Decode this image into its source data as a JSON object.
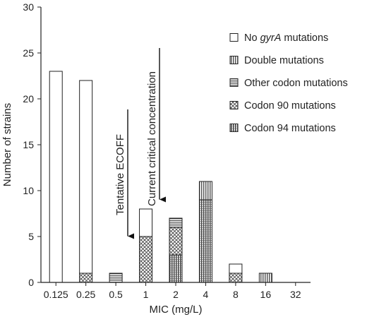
{
  "chart_data": {
    "type": "bar",
    "stacked": true,
    "categories": [
      "0.125",
      "0.25",
      "0.5",
      "1",
      "2",
      "4",
      "8",
      "16",
      "32"
    ],
    "xlabel": "MIC (mg/L)",
    "ylabel": "Number of strains",
    "ylim": [
      0,
      30
    ],
    "yticks": [
      "0",
      "5",
      "10",
      "15",
      "20",
      "25",
      "30"
    ],
    "grid": false,
    "legend_position": "top-right",
    "series": [
      {
        "name": "Codon 94 mutations",
        "pattern": "dense-vertical",
        "values": [
          0,
          0,
          0,
          0,
          3,
          9,
          0,
          0,
          0
        ]
      },
      {
        "name": "Codon 90 mutations",
        "pattern": "crosshatch",
        "values": [
          0,
          1,
          0,
          5,
          3,
          0,
          1,
          0,
          0
        ]
      },
      {
        "name": "Other codon mutations",
        "pattern": "horizontal",
        "values": [
          0,
          0,
          1,
          0,
          1,
          0,
          0,
          0,
          0
        ]
      },
      {
        "name": "Double mutations",
        "pattern": "vertical",
        "values": [
          0,
          0,
          0,
          0,
          0,
          2,
          0,
          1,
          0
        ]
      },
      {
        "name": "No gyrA mutations",
        "pattern": "blank",
        "values": [
          23,
          21,
          0,
          3,
          0,
          0,
          1,
          0,
          0
        ]
      }
    ],
    "legend": [
      {
        "pre": "No ",
        "italic": "gyrA",
        "post": " mutations",
        "pattern": "blank"
      },
      {
        "pre": "Double mutations",
        "italic": "",
        "post": "",
        "pattern": "vertical"
      },
      {
        "pre": "Other codon mutations",
        "italic": "",
        "post": "",
        "pattern": "horizontal"
      },
      {
        "pre": "Codon 90 mutations",
        "italic": "",
        "post": "",
        "pattern": "crosshatch"
      },
      {
        "pre": "Codon 94 mutations",
        "italic": "",
        "post": "",
        "pattern": "dense-vertical"
      }
    ],
    "annotations": [
      {
        "text": "Tentative ECOFF",
        "between": [
          "0.5",
          "1"
        ],
        "arrow_to_y": 5
      },
      {
        "text": "Current critical concentration",
        "between": [
          "1",
          "2"
        ],
        "arrow_to_y": 9
      }
    ],
    "colors": {
      "axis": "#222222",
      "bar_fill": "#ffffff",
      "pattern_ink": "#333333"
    }
  }
}
